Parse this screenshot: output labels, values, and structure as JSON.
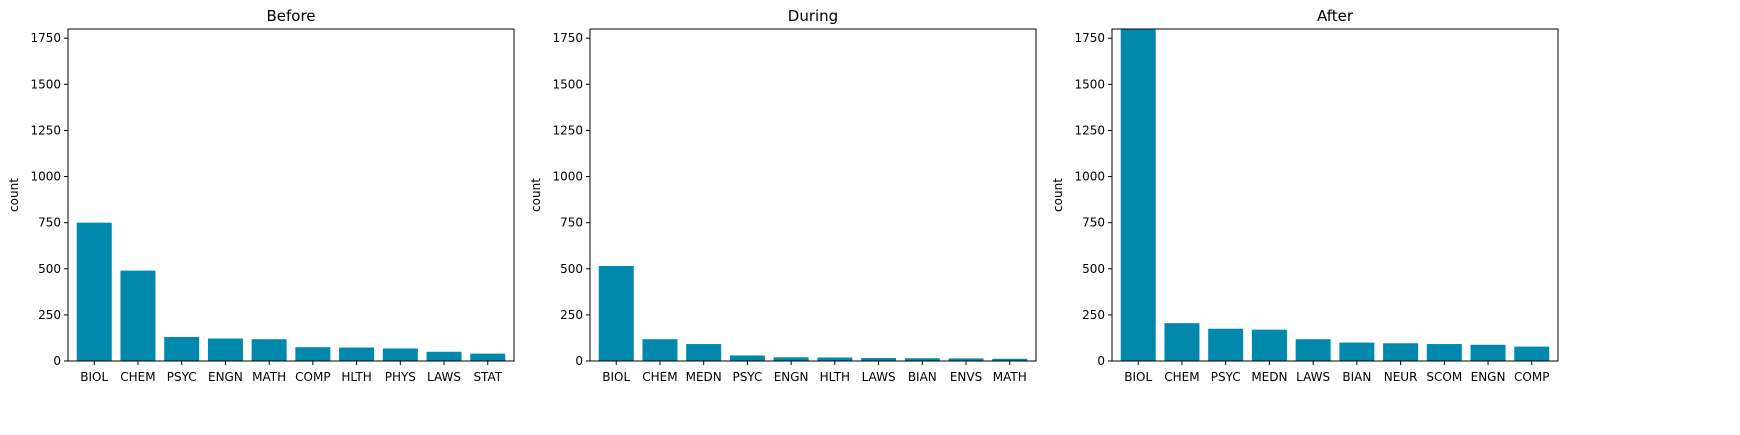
{
  "colors": {
    "bar": "#0088ad"
  },
  "chart_data": [
    {
      "type": "bar",
      "title": "Before",
      "ylabel": "count",
      "xlabel": "",
      "ylim": [
        0,
        1800
      ],
      "yticks": [
        "0",
        "250",
        "500",
        "750",
        "1000",
        "1250",
        "1500",
        "1750"
      ],
      "categories": [
        "BIOL",
        "CHEM",
        "PSYC",
        "ENGN",
        "MATH",
        "COMP",
        "HLTH",
        "PHYS",
        "LAWS",
        "STAT"
      ],
      "values": [
        750,
        490,
        130,
        122,
        118,
        75,
        73,
        68,
        50,
        40
      ]
    },
    {
      "type": "bar",
      "title": "During",
      "ylabel": "count",
      "xlabel": "",
      "ylim": [
        0,
        1800
      ],
      "yticks": [
        "0",
        "250",
        "500",
        "750",
        "1000",
        "1250",
        "1500",
        "1750"
      ],
      "categories": [
        "BIOL",
        "CHEM",
        "MEDN",
        "PSYC",
        "ENGN",
        "HLTH",
        "LAWS",
        "BIAN",
        "ENVS",
        "MATH"
      ],
      "values": [
        515,
        118,
        92,
        30,
        20,
        19,
        16,
        15,
        14,
        12
      ]
    },
    {
      "type": "bar",
      "title": "After",
      "ylabel": "count",
      "xlabel": "",
      "ylim": [
        0,
        1800
      ],
      "yticks": [
        "0",
        "250",
        "500",
        "750",
        "1000",
        "1250",
        "1500",
        "1750"
      ],
      "categories": [
        "BIOL",
        "CHEM",
        "PSYC",
        "MEDN",
        "LAWS",
        "BIAN",
        "NEUR",
        "SCOM",
        "ENGN",
        "COMP"
      ],
      "values": [
        1797,
        205,
        175,
        170,
        118,
        100,
        96,
        92,
        88,
        78
      ]
    }
  ]
}
